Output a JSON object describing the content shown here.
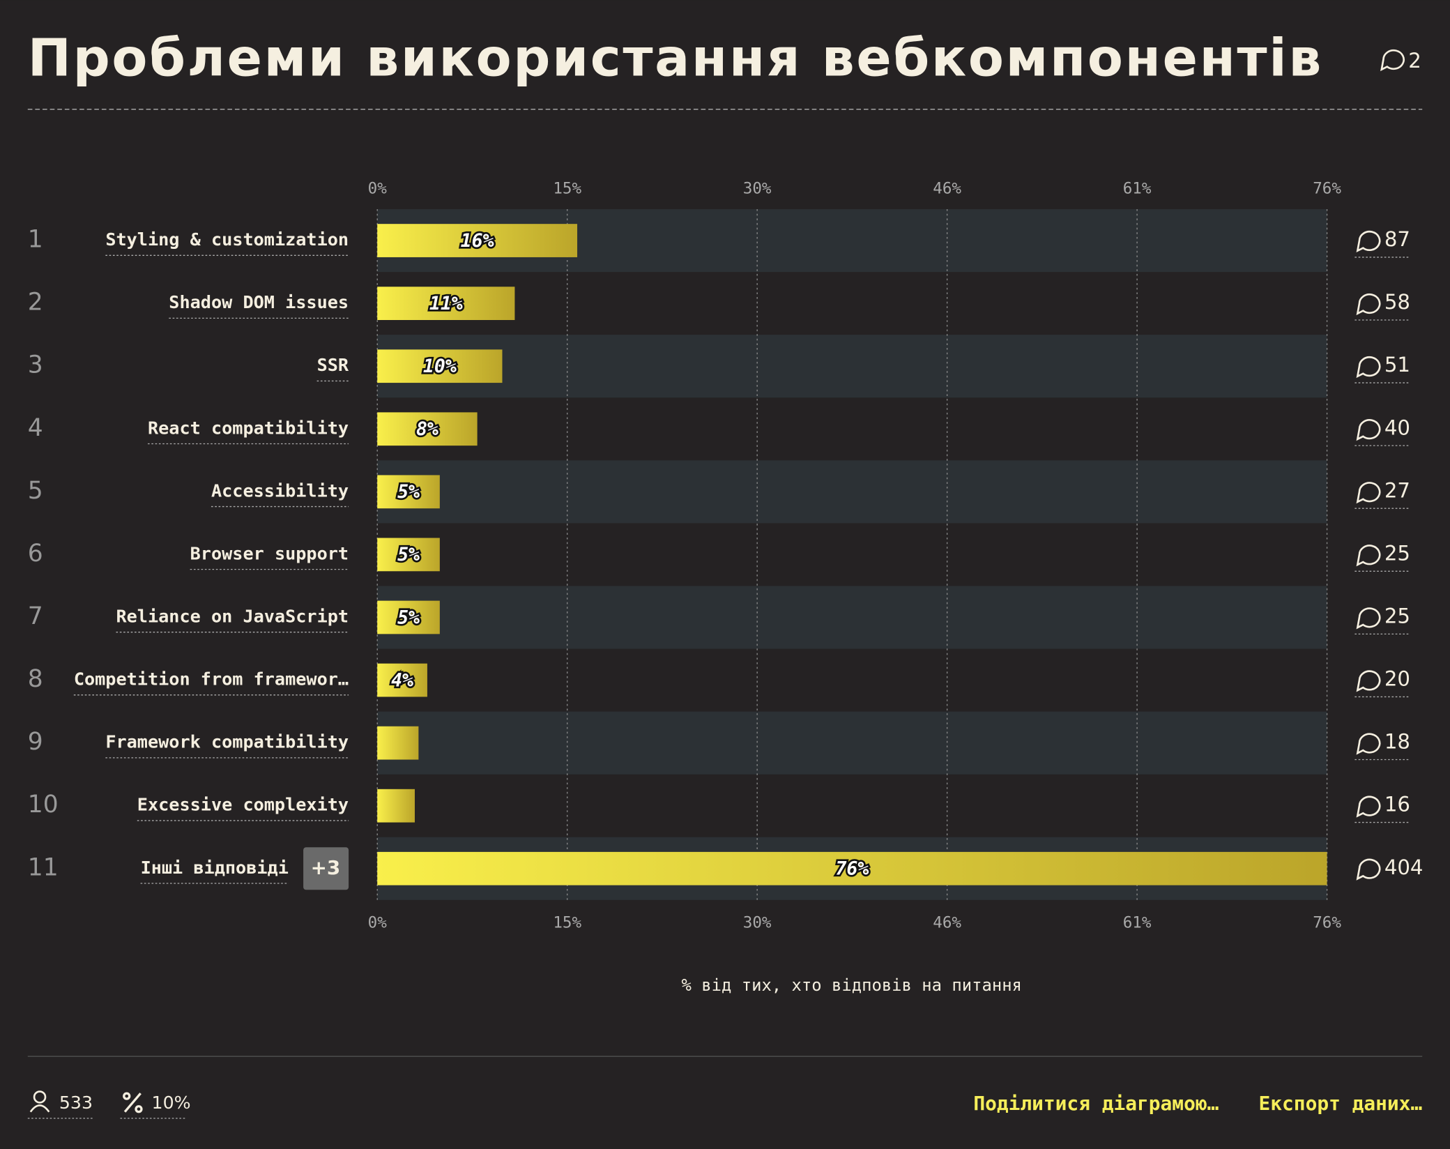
{
  "header": {
    "title": "Проблеми використання вебкомпонентів",
    "comments": 2
  },
  "chart_data": {
    "type": "hbar",
    "ranks": [
      1,
      2,
      3,
      4,
      5,
      6,
      7,
      8,
      9,
      10,
      11
    ],
    "categories": [
      "Styling & customization",
      "Shadow DOM issues",
      "SSR",
      "React compatibility",
      "Accessibility",
      "Browser support",
      "Reliance on JavaScript",
      "Competition from framewor…",
      "Framework compatibility",
      "Excessive complexity",
      "Інші відповіді"
    ],
    "values": [
      16,
      11,
      10,
      8,
      5,
      5,
      5,
      4,
      3.3,
      3,
      76
    ],
    "value_labels": [
      "16%",
      "11%",
      "10%",
      "8%",
      "5%",
      "5%",
      "5%",
      "4%",
      null,
      null,
      "76%"
    ],
    "comments": [
      87,
      58,
      51,
      40,
      27,
      25,
      25,
      20,
      18,
      16,
      404
    ],
    "badge": "+3",
    "colors": [
      "#f9ef4b",
      "#bba52a"
    ],
    "xlim": [
      0,
      76
    ],
    "xticks": [
      {
        "value": 0,
        "label": "0%"
      },
      {
        "value": 15.2,
        "label": "15%"
      },
      {
        "value": 30.4,
        "label": "30%"
      },
      {
        "value": 45.6,
        "label": "46%"
      },
      {
        "value": 60.8,
        "label": "61%"
      },
      {
        "value": 76,
        "label": "76%"
      }
    ],
    "xlabel": "% від тих, хто відповів на питання",
    "grid": true
  },
  "footer": {
    "respondents": 533,
    "percent": "10%",
    "share": "Поділитися діаграмою…",
    "export": "Експорт даних…"
  }
}
